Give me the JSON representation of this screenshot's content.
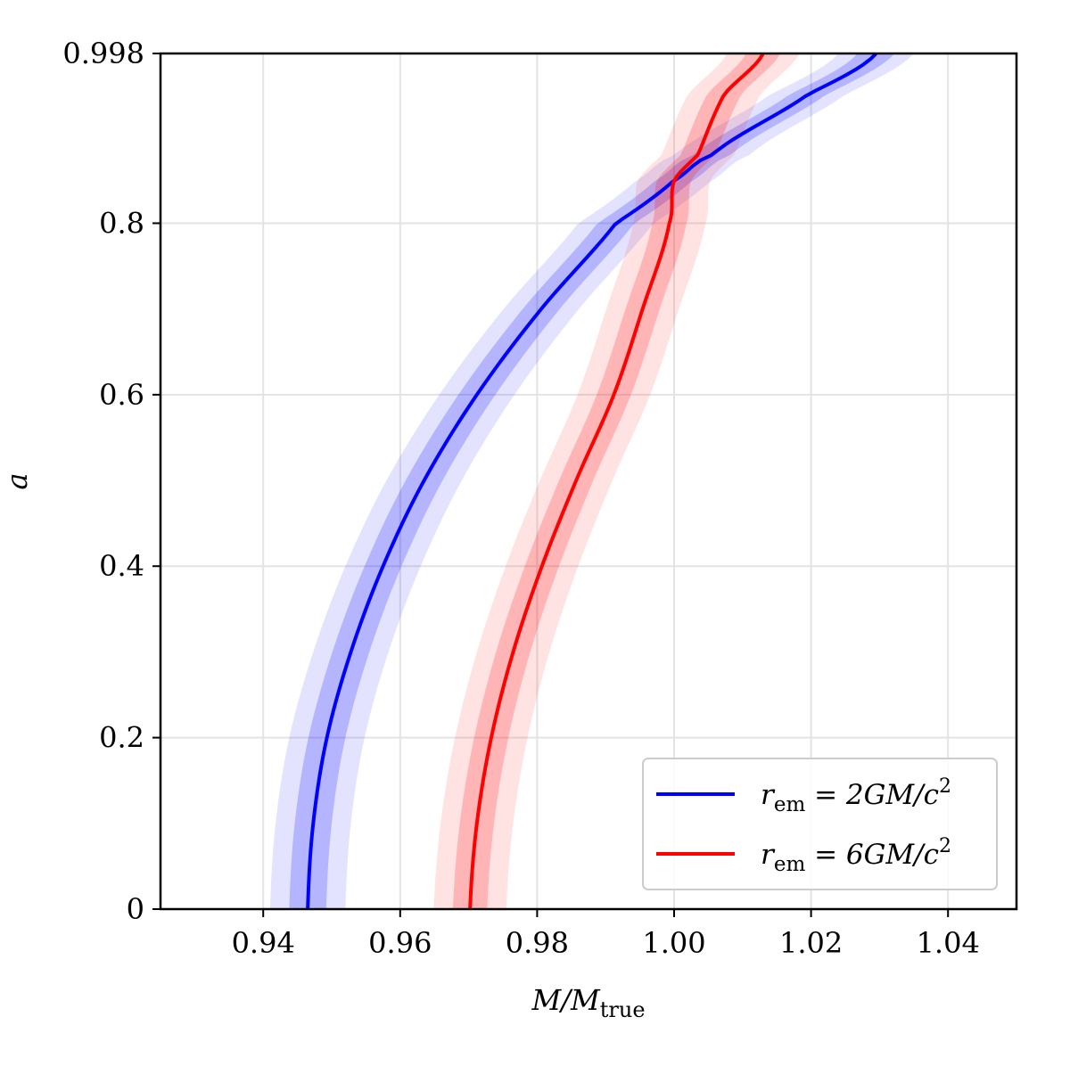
{
  "chart_data": {
    "type": "line",
    "title": "",
    "xlabel": "M/M_true",
    "xlabel_parts": {
      "main": "M/M",
      "sub": "true"
    },
    "ylabel": "a",
    "xlim": [
      0.925,
      1.05
    ],
    "ylim": [
      0,
      0.998
    ],
    "xticks": [
      {
        "value": 0.94,
        "label": "0.94"
      },
      {
        "value": 0.96,
        "label": "0.96"
      },
      {
        "value": 0.98,
        "label": "0.98"
      },
      {
        "value": 1.0,
        "label": "1.00"
      },
      {
        "value": 1.02,
        "label": "1.02"
      },
      {
        "value": 1.04,
        "label": "1.04"
      }
    ],
    "yticks": [
      {
        "value": 0,
        "label": "0"
      },
      {
        "value": 0.2,
        "label": "0.2"
      },
      {
        "value": 0.4,
        "label": "0.4"
      },
      {
        "value": 0.6,
        "label": "0.6"
      },
      {
        "value": 0.8,
        "label": "0.8"
      },
      {
        "value": 0.998,
        "label": "0.998"
      }
    ],
    "grid": true,
    "legend_position": "lower right",
    "series": [
      {
        "name": "r_em = 2GM/c^2",
        "legend": {
          "r": "r",
          "sub": "em",
          "rest": " = 2GM/c",
          "sup": "2"
        },
        "color": "#0000ff",
        "band_inner_halfwidth": 0.0027,
        "band_outer_halfwidth": 0.0055,
        "x": [
          0.9465,
          0.9473,
          0.9493,
          0.9528,
          0.9575,
          0.9635,
          0.9712,
          0.9806,
          0.9915,
          1.0,
          1.0056,
          1.0195,
          1.0295
        ],
        "y": [
          0.0,
          0.1,
          0.2,
          0.3,
          0.4,
          0.5,
          0.6,
          0.7,
          0.8,
          0.85,
          0.88,
          0.95,
          0.998
        ]
      },
      {
        "name": "r_em = 6GM/c^2",
        "legend": {
          "r": "r",
          "sub": "em",
          "rest": " = 6GM/c",
          "sup": "2"
        },
        "color": "#ff0000",
        "band_inner_halfwidth": 0.0025,
        "band_outer_halfwidth": 0.0053,
        "x": [
          0.9702,
          0.9712,
          0.9733,
          0.9765,
          0.9807,
          0.9857,
          0.9912,
          0.9954,
          0.9993,
          1.0,
          1.0035,
          1.0073,
          1.013
        ],
        "y": [
          0.0,
          0.1,
          0.2,
          0.3,
          0.4,
          0.5,
          0.6,
          0.7,
          0.8,
          0.85,
          0.88,
          0.95,
          0.998
        ]
      }
    ]
  }
}
